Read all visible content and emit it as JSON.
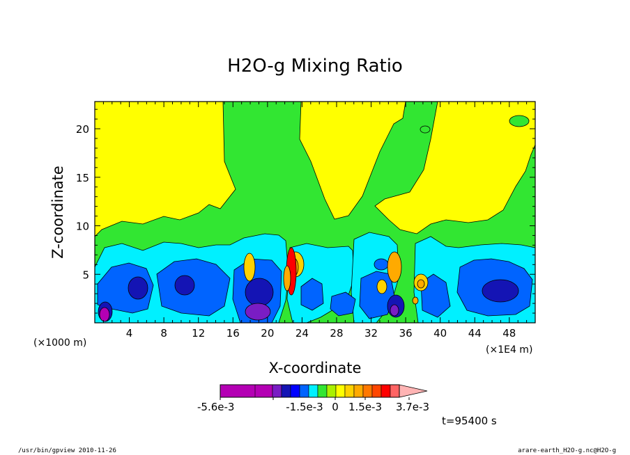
{
  "chart_data": {
    "type": "heatmap",
    "title": "H2O-g Mixing Ratio",
    "xlabel": "X-coordinate",
    "ylabel": "Z-coordinate",
    "x_units_left": "(×1000 m)",
    "x_units_right": "(×1E4 m)",
    "xlim": [
      0,
      51
    ],
    "ylim": [
      0,
      22.8
    ],
    "xticks": [
      4,
      8,
      12,
      16,
      20,
      24,
      28,
      32,
      36,
      40,
      44,
      48
    ],
    "yticks": [
      5,
      10,
      15,
      20
    ],
    "colorbar": {
      "ticklabels": [
        "-5.6e-3",
        "-1.5e-3",
        "0",
        "1.5e-3",
        "3.7e-3"
      ],
      "colors": [
        "#b400b4",
        "#b400b4",
        "#b400b4",
        "#7a1dc4",
        "#1414b4",
        "#0000ff",
        "#0064ff",
        "#00f0ff",
        "#32e632",
        "#aaf000",
        "#ffff00",
        "#ffd200",
        "#ffaa00",
        "#ff7800",
        "#ff4600",
        "#ff0000",
        "#ff6464",
        "#ffb4b4"
      ]
    },
    "time_label": "t=95400 s",
    "regions": {
      "background": "#ffff00",
      "near_zero": "#32e632",
      "weak_negative": "#00f0ff",
      "moderate_negative": "#0064ff",
      "strong_negative": "#1414b4",
      "very_negative": "#7a1dc4",
      "extreme_negative": "#b400b4",
      "weak_positive": "#ffd200",
      "moderate_positive": "#ffaa00",
      "strong_positive": "#ff0000"
    }
  },
  "footer": {
    "left": "/usr/bin/gpview   2010-11-26",
    "right": "arare-earth_H2O-g.nc@H2O-g"
  }
}
